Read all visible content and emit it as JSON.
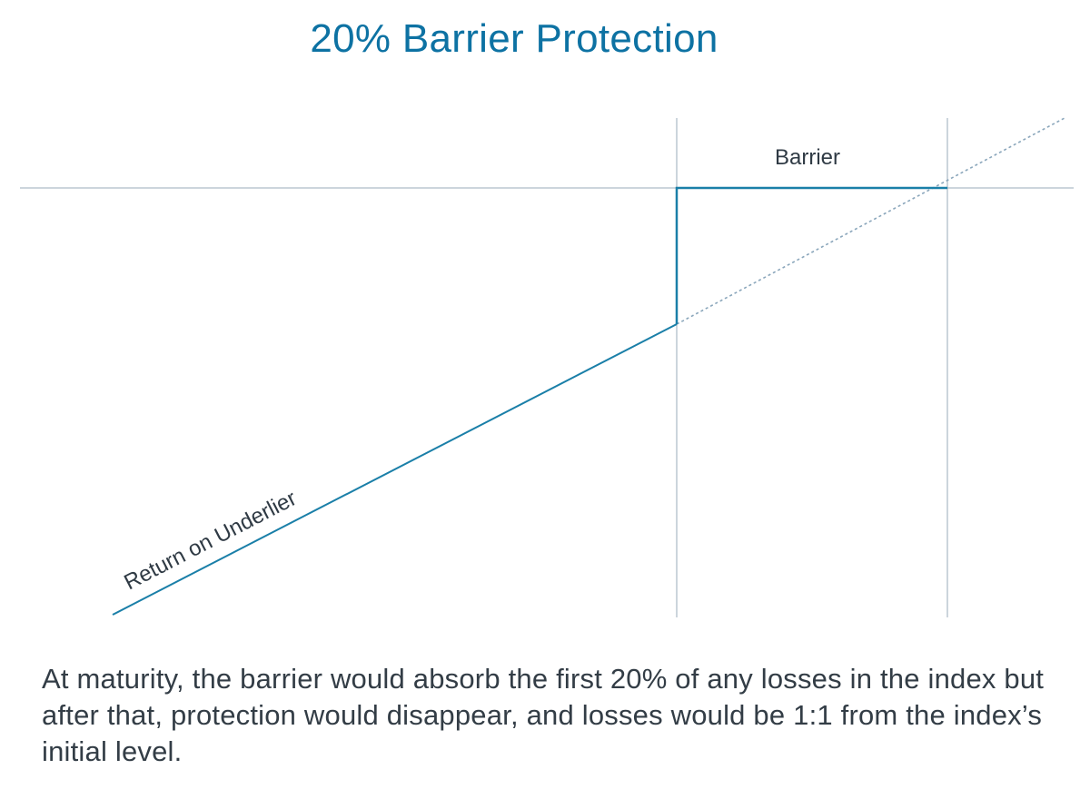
{
  "title": "20% Barrier Protection",
  "diagram": {
    "barrier_label": "Barrier",
    "underlier_label": "Return on Underlier",
    "barrier_percent": 20,
    "colors": {
      "title": "#0d72a3",
      "payoff_line": "#1a7fa8",
      "reference_lines": "#9aabb8",
      "dotted_line": "#8aa6bb",
      "label_text": "#2f3a44"
    }
  },
  "caption": {
    "text": "At maturity, the barrier would absorb the first 20% of any losses in the index but after that, protection would disappear, and losses would be 1:1 from the index’s initial level."
  }
}
